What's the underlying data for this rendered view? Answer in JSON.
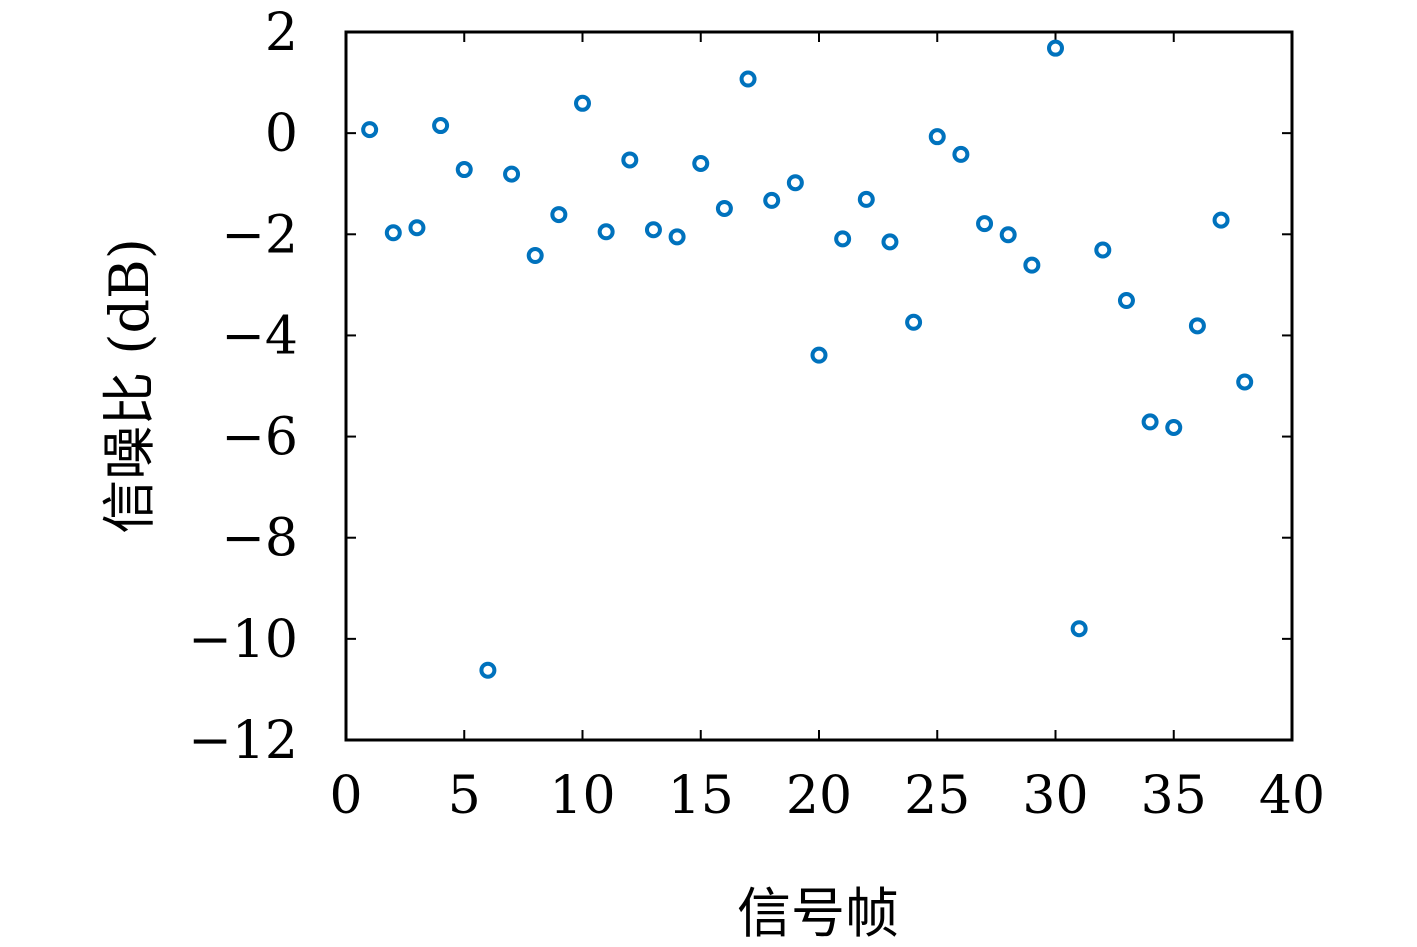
{
  "chart_data": {
    "type": "scatter",
    "title": "",
    "xlabel": "信号帧",
    "ylabel": "信噪比 (dB)",
    "xlim": [
      0,
      40
    ],
    "ylim": [
      -12,
      2
    ],
    "xticks": [
      0,
      5,
      10,
      15,
      20,
      25,
      30,
      35,
      40
    ],
    "yticks": [
      2,
      0,
      -2,
      -4,
      -6,
      -8,
      -10,
      -12
    ],
    "xtick_labels": [
      "0",
      "5",
      "10",
      "15",
      "20",
      "25",
      "30",
      "35",
      "40"
    ],
    "ytick_labels": [
      "2",
      "0",
      "−2",
      "−4",
      "−6",
      "−8",
      "−10",
      "−12"
    ],
    "grid": false,
    "marker": "circle-open",
    "color": "#0072BD",
    "series": [
      {
        "x": [
          1,
          2,
          3,
          4,
          5,
          6,
          7,
          8,
          9,
          10,
          11,
          12,
          13,
          14,
          15,
          16,
          17,
          18,
          19,
          20,
          21,
          22,
          23,
          24,
          25,
          26,
          27,
          28,
          29,
          30,
          31,
          32,
          33,
          34,
          35,
          36,
          37,
          38
        ],
        "y": [
          0.07,
          -1.97,
          -1.87,
          0.15,
          -0.72,
          -10.62,
          -0.81,
          -2.42,
          -1.61,
          0.59,
          -1.95,
          -0.53,
          -1.91,
          -2.05,
          -0.6,
          -1.49,
          1.07,
          -1.33,
          -0.98,
          -4.39,
          -2.09,
          -1.31,
          -2.15,
          -3.74,
          -0.07,
          -0.42,
          -1.79,
          -2.01,
          -2.61,
          1.68,
          -9.8,
          -2.31,
          -3.31,
          -5.71,
          -5.82,
          -3.81,
          -1.72,
          -4.92
        ]
      }
    ]
  }
}
